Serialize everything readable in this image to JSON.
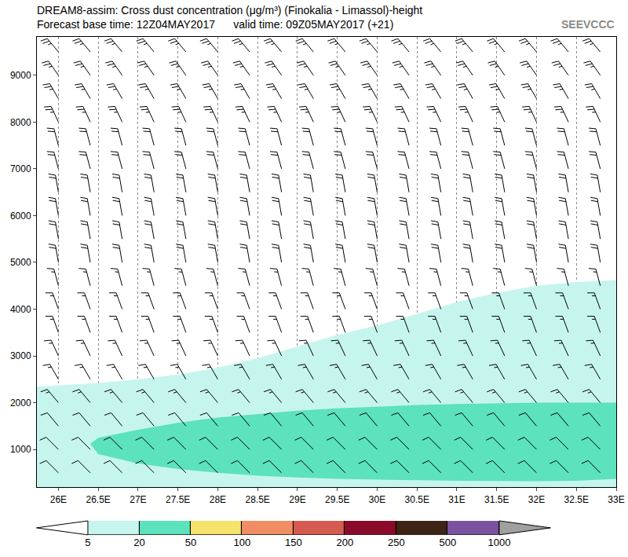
{
  "chart_data": {
    "type": "cross_section",
    "title": "DREAM8-assim: Cross dust concentration (μg/m³) (Finokalia - Limassol)-height",
    "subtitle": "Forecast base time: 12Z04MAY2017      valid time: 09Z05MAY2017 (+21)",
    "logo": "SEEVCCC",
    "xlim": [
      25.73,
      33
    ],
    "xticks": [
      {
        "value": 26,
        "label": "26E"
      },
      {
        "value": 26.5,
        "label": "26.5E"
      },
      {
        "value": 27,
        "label": "27E"
      },
      {
        "value": 27.5,
        "label": "27.5E"
      },
      {
        "value": 28,
        "label": "28E"
      },
      {
        "value": 28.5,
        "label": "28.5E"
      },
      {
        "value": 29,
        "label": "29E"
      },
      {
        "value": 29.5,
        "label": "29.5E"
      },
      {
        "value": 30,
        "label": "30E"
      },
      {
        "value": 30.5,
        "label": "30.5E"
      },
      {
        "value": 31,
        "label": "31E"
      },
      {
        "value": 31.5,
        "label": "31.5E"
      },
      {
        "value": 32,
        "label": "32E"
      },
      {
        "value": 32.5,
        "label": "32.5E"
      },
      {
        "value": 33,
        "label": "33E"
      }
    ],
    "ylim": [
      190,
      9820
    ],
    "yticks": [
      1000,
      2000,
      3000,
      4000,
      5000,
      6000,
      7000,
      8000,
      9000
    ],
    "grid": true,
    "regions": [
      {
        "level": 5,
        "x": [
          25.73,
          25.73,
          26.5,
          27,
          27.5,
          28,
          28.5,
          29,
          29.5,
          30,
          30.5,
          31,
          31.5,
          32,
          32.5,
          33,
          33
        ],
        "y": [
          190,
          2340,
          2420,
          2500,
          2600,
          2750,
          2950,
          3200,
          3450,
          3650,
          3900,
          4150,
          4350,
          4500,
          4580,
          4620,
          190
        ]
      },
      {
        "level": 20,
        "x": [
          26.4,
          26.5,
          27,
          27.5,
          28,
          28.5,
          29,
          29.5,
          30,
          30.5,
          31,
          31.5,
          32,
          32.5,
          33,
          33,
          32.5,
          32,
          31.5,
          31,
          30.5,
          30,
          29.5,
          29,
          28.5,
          28,
          27.5,
          27,
          26.5
        ],
        "y": [
          1120,
          1250,
          1420,
          1570,
          1680,
          1760,
          1830,
          1880,
          1920,
          1950,
          1970,
          1990,
          2000,
          2000,
          2000,
          370,
          330,
          320,
          320,
          330,
          340,
          350,
          370,
          400,
          440,
          500,
          580,
          700,
          900
        ]
      }
    ],
    "wind": {
      "x": [
        26,
        26.4,
        26.8,
        27.2,
        27.6,
        28,
        28.4,
        28.8,
        29.2,
        29.6,
        30,
        30.4,
        30.8,
        31.2,
        31.6,
        32,
        32.4,
        32.8
      ],
      "heights": [
        500,
        1000,
        1500,
        2000,
        2500,
        3000,
        3500,
        4000,
        4500,
        5000,
        5500,
        6000,
        6500,
        7000,
        7500,
        8000,
        8500,
        9000,
        9500
      ],
      "direction": [
        315,
        315,
        320,
        320,
        330,
        335,
        340,
        340,
        345,
        350,
        350,
        350,
        350,
        345,
        345,
        335,
        330,
        325,
        320
      ],
      "speed": [
        10,
        10,
        10,
        15,
        15,
        15,
        15,
        15,
        15,
        20,
        20,
        20,
        20,
        20,
        20,
        25,
        25,
        25,
        25
      ]
    },
    "colorbar": {
      "levels": [
        5,
        20,
        50,
        100,
        150,
        200,
        250,
        500,
        1000
      ],
      "colors": [
        "#c6f5ee",
        "#5ce2bc",
        "#f5e36c",
        "#f08d63",
        "#d55a50",
        "#8a0a2a",
        "#3d2414",
        "#7b529f"
      ]
    }
  }
}
